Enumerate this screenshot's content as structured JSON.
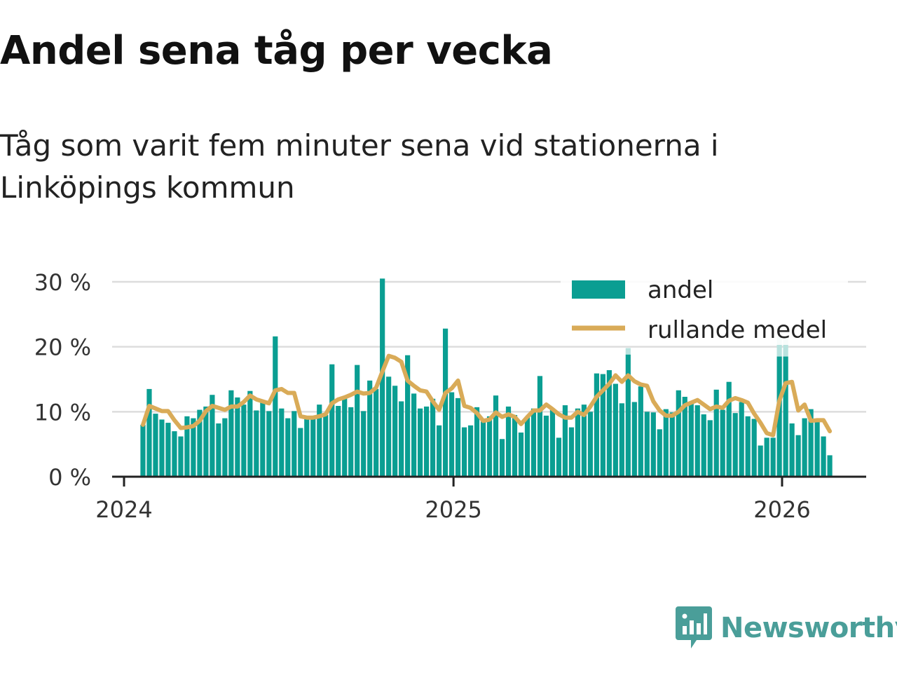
{
  "title": "Andel sena tåg per vecka",
  "subtitle": "Tåg som varit fem minuter sena vid stationerna i Linköpings kommun",
  "brand": "Newsworthy",
  "colors": {
    "bars": "#0a9e92",
    "bars_highlight": "#b8e2de",
    "line": "#d9ab58",
    "grid": "#dddddd",
    "axis": "#222222",
    "brand": "#4a9e99"
  },
  "chart_data": {
    "type": "bar",
    "x_type": "date",
    "week_start": "2024-01-22",
    "x_ticks": [
      "2024",
      "2025",
      "2026"
    ],
    "x_tick_dates": [
      "2024-01-01",
      "2025-01-01",
      "2026-01-01"
    ],
    "y_ticks": [
      "0 %",
      "10 %",
      "20 %",
      "30 %"
    ],
    "y_tick_values": [
      0,
      10,
      20,
      30
    ],
    "ylim": [
      0,
      30
    ],
    "grid": true,
    "legend_position": "top-right",
    "legend": [
      "andel",
      "rullande medel"
    ],
    "series": [
      {
        "name": "andel",
        "kind": "bar",
        "values": [
          8.0,
          13.5,
          9.7,
          8.8,
          8.3,
          7.0,
          6.2,
          9.3,
          9.0,
          10.3,
          10.8,
          12.6,
          8.2,
          9.0,
          13.3,
          12.2,
          11.1,
          13.2,
          10.2,
          11.4,
          10.1,
          21.6,
          10.5,
          9.0,
          10.1,
          7.5,
          9.0,
          9.2,
          11.1,
          9.5,
          17.3,
          10.9,
          12.2,
          10.7,
          17.2,
          10.1,
          14.8,
          13.5,
          30.5,
          15.4,
          14.0,
          11.6,
          18.7,
          12.8,
          10.5,
          10.8,
          12.0,
          7.9,
          22.8,
          13.0,
          12.1,
          7.6,
          7.9,
          10.7,
          8.5,
          9.3,
          12.5,
          5.8,
          10.8,
          9.5,
          6.8,
          9.2,
          10.5,
          15.5,
          9.4,
          10.3,
          6.0,
          11.0,
          7.6,
          10.5,
          11.1,
          10.0,
          15.9,
          15.8,
          16.4,
          14.3,
          11.3,
          18.8,
          11.5,
          13.9,
          10.0,
          9.9,
          7.3,
          10.4,
          9.9,
          13.3,
          12.3,
          11.4,
          11.0,
          9.6,
          8.7,
          13.4,
          10.3,
          14.6,
          9.8,
          11.5,
          9.3,
          8.9,
          4.8,
          6.0,
          6.0,
          18.5,
          18.5,
          8.2,
          6.4,
          9.0,
          10.4,
          8.5,
          6.2,
          3.3
        ],
        "highlight_overflow": {
          "77": 19.8,
          "101": 21.5,
          "102": 21.5
        }
      },
      {
        "name": "rullande medel",
        "kind": "line",
        "values": [
          8.0,
          10.9,
          10.5,
          10.1,
          10.1,
          8.7,
          7.5,
          7.6,
          7.8,
          8.6,
          10.1,
          10.9,
          10.6,
          10.3,
          10.8,
          10.8,
          11.5,
          12.5,
          11.9,
          11.6,
          11.3,
          13.3,
          13.5,
          12.9,
          12.9,
          9.3,
          9.1,
          9.1,
          9.3,
          9.6,
          11.3,
          11.9,
          12.2,
          12.6,
          13.1,
          12.8,
          12.9,
          13.7,
          16.2,
          18.6,
          18.3,
          17.7,
          14.8,
          14.0,
          13.3,
          13.1,
          11.6,
          10.3,
          12.9,
          13.6,
          14.8,
          10.9,
          10.6,
          9.8,
          8.6,
          8.8,
          9.9,
          9.2,
          9.6,
          9.2,
          8.1,
          9.2,
          10.2,
          10.2,
          11.1,
          10.4,
          9.6,
          9.1,
          9.1,
          10.0,
          9.5,
          10.8,
          12.3,
          13.3,
          14.3,
          15.6,
          14.6,
          15.6,
          14.7,
          14.2,
          14.0,
          11.6,
          10.2,
          9.4,
          9.4,
          10.0,
          11.0,
          11.4,
          11.8,
          11.1,
          10.4,
          10.8,
          10.6,
          11.7,
          12.1,
          11.8,
          11.4,
          9.7,
          8.3,
          6.7,
          6.4,
          11.7,
          14.4,
          14.6,
          10.2,
          11.1,
          8.6,
          8.7,
          8.7,
          7.0
        ]
      }
    ]
  }
}
